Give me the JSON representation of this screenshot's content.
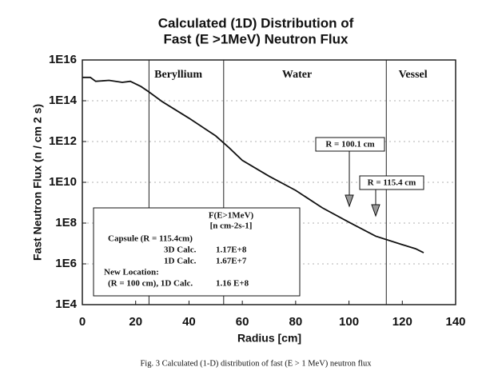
{
  "chart_data": {
    "type": "line",
    "title": [
      "Calculated (1D) Distribution of",
      "Fast (E >1MeV)  Neutron Flux"
    ],
    "x_label": "Radius [cm]",
    "y_label": "Fast Neutron Flux (n / cm 2 s)",
    "caption": "Fig. 3   Calculated (1-D) distribution of fast (E > 1 MeV) neutron flux",
    "log_y": true,
    "grid": true,
    "xlim": [
      0,
      140
    ],
    "xticks": [
      0,
      20,
      40,
      60,
      80,
      100,
      120,
      140
    ],
    "ylim": [
      10000.0,
      1e+16
    ],
    "yticks": [
      {
        "value": 10000.0,
        "label": "1E4"
      },
      {
        "value": 1000000.0,
        "label": "1E6"
      },
      {
        "value": 100000000.0,
        "label": "1E8"
      },
      {
        "value": 10000000000.0,
        "label": "1E10"
      },
      {
        "value": 1000000000000.0,
        "label": "1E12"
      },
      {
        "value": 100000000000000.0,
        "label": "1E14"
      },
      {
        "value": 1e+16,
        "label": "1E16"
      }
    ],
    "x": [
      0,
      3,
      5,
      10,
      15,
      18,
      22,
      25,
      30,
      40,
      50,
      55,
      60,
      70,
      80,
      90,
      100,
      110,
      120,
      125,
      128
    ],
    "series": [
      {
        "name": "Fast neutron flux",
        "color": "#111111",
        "values": [
          1400000000000000.0,
          1400000000000000.0,
          900000000000000.0,
          1000000000000000.0,
          800000000000000.0,
          900000000000000.0,
          500000000000000.0,
          270000000000000.0,
          90000000000000.0,
          14000000000000.0,
          1900000000000.0,
          500000000000.0,
          120000000000.0,
          20000000000.0,
          4000000000.0,
          560000000.0,
          110000000.0,
          23000000.0,
          8700000.0,
          5500000.0,
          3500000.0
        ]
      }
    ],
    "regions": [
      {
        "name": "Beryllium",
        "start": 25,
        "end": 53
      },
      {
        "name": "Water",
        "start": 53,
        "end": 114
      },
      {
        "name": "Vessel",
        "start": 114,
        "end": 140
      }
    ],
    "annotations": [
      "R = 100.1 cm",
      "R = 115.4 cm"
    ],
    "inset": {
      "header": [
        "F(E>1MeV)",
        "[n cm-2s-1]"
      ],
      "rows": [
        [
          "Capsule (R = 115.4cm)",
          ""
        ],
        [
          "3D Calc.",
          "1.17E+8"
        ],
        [
          "1D Calc.",
          "1.67E+7"
        ],
        [
          "New Location:",
          ""
        ],
        [
          "(R = 100 cm), 1D Calc.",
          "1.16 E+8"
        ]
      ]
    }
  }
}
